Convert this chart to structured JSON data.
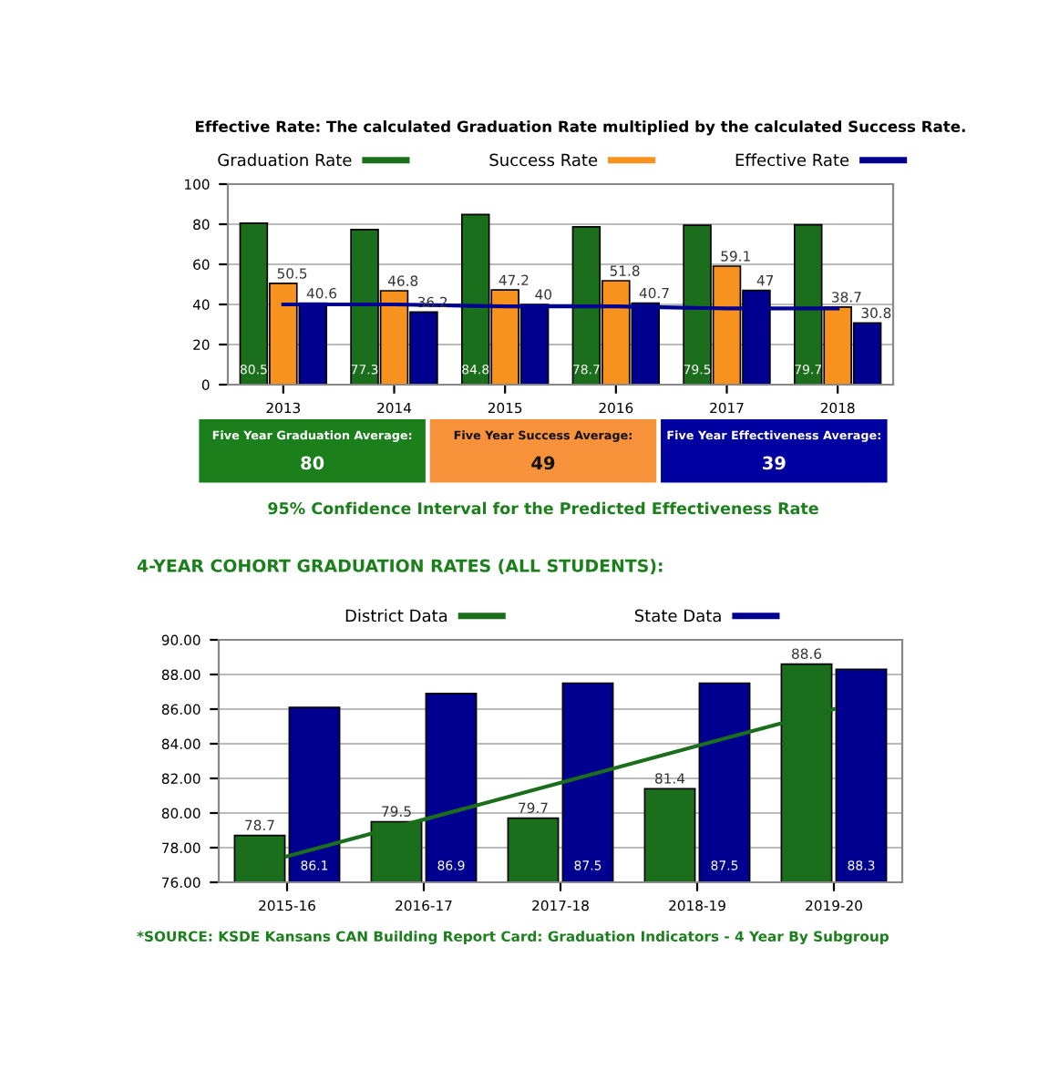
{
  "chart_data": [
    {
      "type": "bar",
      "title": "Effective Rate: The calculated Graduation Rate multiplied by the calculated Success Rate.",
      "categories": [
        "2013",
        "2014",
        "2015",
        "2016",
        "2017",
        "2018"
      ],
      "series": [
        {
          "name": "Graduation Rate",
          "color": "#1b6e1b",
          "values": [
            80.5,
            77.3,
            84.8,
            78.7,
            79.5,
            79.7
          ]
        },
        {
          "name": "Success Rate",
          "color": "#f7921e",
          "values": [
            50.5,
            46.8,
            47.2,
            51.8,
            59.1,
            38.7
          ]
        },
        {
          "name": "Effective Rate",
          "color": "#000090",
          "values": [
            40.6,
            36.2,
            40,
            40.7,
            47,
            30.8
          ]
        },
        {
          "type": "line",
          "color": "#000090",
          "values": [
            40,
            40,
            39,
            39,
            38,
            38
          ],
          "value_labels": [
            null,
            null,
            null,
            null,
            null,
            null
          ]
        }
      ],
      "ylim": [
        0,
        100
      ],
      "yticks": [
        0,
        20,
        40,
        60,
        80,
        100
      ],
      "grid": "y",
      "legend": "top",
      "data_labels": true
    },
    {
      "type": "other",
      "colors": [
        "#1b7f1b",
        "#f7923a",
        "#0000a0"
      ],
      "annotations": [
        "Five Year Graduation Average:",
        "80",
        "Five Year Success Average:",
        "49",
        "Five Year Effectiveness Average:",
        "39",
        "95% Confidence Interval for the Predicted Effectiveness Rate"
      ]
    },
    {
      "type": "bar",
      "title": "4-YEAR COHORT GRADUATION RATES (ALL STUDENTS):",
      "categories": [
        "2015-16",
        "2016-17",
        "2017-18",
        "2018-19",
        "2019-20"
      ],
      "series": [
        {
          "name": "District Data",
          "color": "#1b6e1b",
          "values": [
            78.7,
            79.5,
            79.7,
            81.4,
            88.6
          ]
        },
        {
          "name": "State Data",
          "color": "#000090",
          "values": [
            86.1,
            86.9,
            87.5,
            87.5,
            88.3
          ]
        },
        {
          "type": "line",
          "color": "#1b6e1b",
          "x": [
            "2015-16",
            "2019-20"
          ],
          "values": [
            77.5,
            86
          ],
          "value_labels": [
            null,
            null
          ]
        }
      ],
      "ylim": [
        76,
        90
      ],
      "yticks": [
        {
          "value": 76,
          "label": "76.00"
        },
        {
          "value": 78,
          "label": "78.00"
        },
        {
          "value": 80,
          "label": "80.00"
        },
        {
          "value": 82,
          "label": "82.00"
        },
        {
          "value": 84,
          "label": "84.00"
        },
        {
          "value": 86,
          "label": "86.00"
        },
        {
          "value": 88,
          "label": "88.00"
        },
        {
          "value": 90,
          "label": "90.00"
        }
      ],
      "grid": "y",
      "legend": "top",
      "data_labels": true,
      "annotations": [
        "*SOURCE: KSDE Kansans CAN Building Report Card: Graduation Indicators - 4 Year By Subgroup"
      ]
    }
  ]
}
